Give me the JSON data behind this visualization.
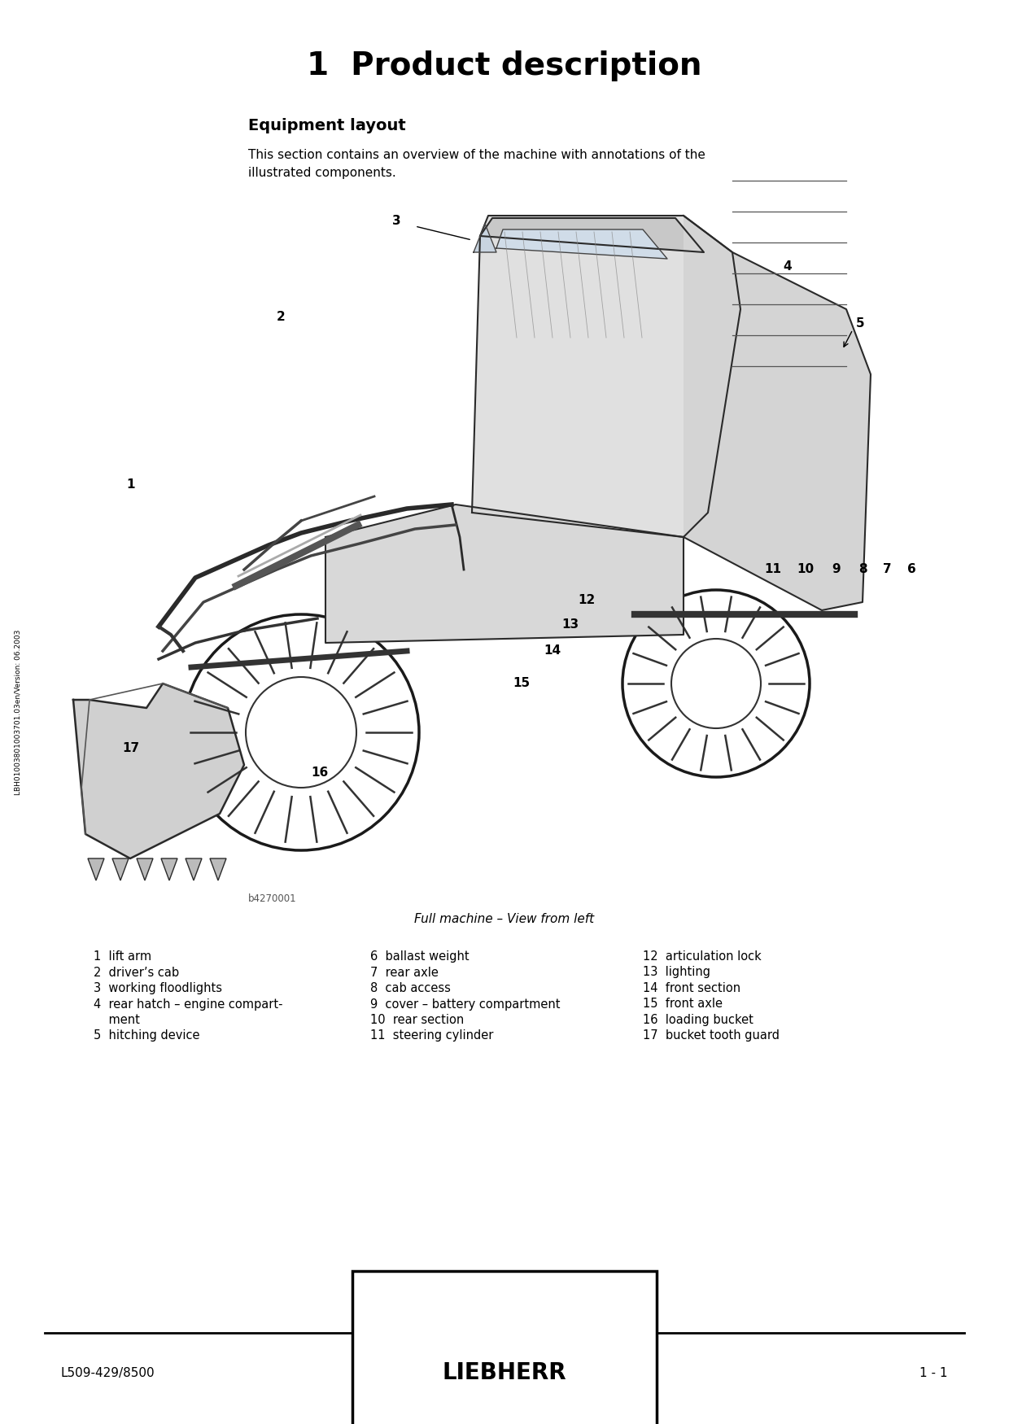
{
  "title": "1  Product description",
  "section_title": "Equipment layout",
  "intro_text": "This section contains an overview of the machine with annotations of the illustrated components.",
  "caption": "Full machine – View from left",
  "image_credit": "b4270001",
  "footer_left": "L509-429/8500",
  "footer_center": "LIEBHERR",
  "footer_right": "1 - 1",
  "sidebar_text": "LBH01003801003701.03en/Version: 06.2003",
  "legend_col1": [
    "1  lift arm",
    "2  driver’s cab",
    "3  working floodlights",
    "4  rear hatch – engine compart-",
    "    ment",
    "5  hitching device"
  ],
  "legend_col2": [
    "6  ballast weight",
    "7  rear axle",
    "8  cab access",
    "9  cover – battery compartment",
    "10  rear section",
    "11  steering cylinder"
  ],
  "legend_col3": [
    "12  articulation lock",
    "13  lighting",
    "14  front section",
    "15  front axle",
    "16  loading bucket",
    "17  bucket tooth guard"
  ],
  "bg_color": "#ffffff",
  "text_color": "#000000",
  "title_fontsize": 28,
  "section_fontsize": 14,
  "body_fontsize": 11,
  "legend_fontsize": 10.5,
  "footer_fontsize": 11,
  "annot_fontsize": 11
}
